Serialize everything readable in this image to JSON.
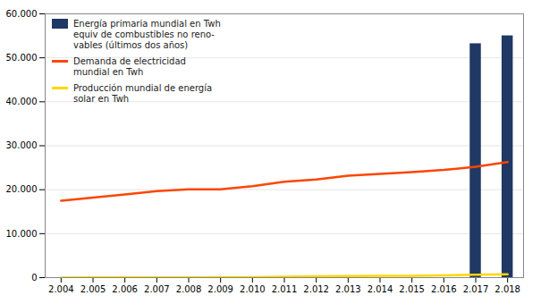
{
  "chart_data": {
    "type": "bar",
    "x": [
      2004,
      2005,
      2006,
      2007,
      2008,
      2009,
      2010,
      2011,
      2012,
      2013,
      2014,
      2015,
      2016,
      2017,
      2018
    ],
    "series": [
      {
        "name": "Energía primaria mundial en Twh\nequiv de combustibles no reno-\nvables (últimos dos años)",
        "type": "bar",
        "color": "#1f3864",
        "values": [
          null,
          null,
          null,
          null,
          null,
          null,
          null,
          null,
          null,
          null,
          null,
          null,
          null,
          53200,
          55000
        ]
      },
      {
        "name": "Demanda de electricidad\nmundial en Twh",
        "type": "line",
        "color": "#FF4500",
        "values": [
          17500,
          18200,
          18900,
          19700,
          20100,
          20100,
          20800,
          21800,
          22300,
          23200,
          23600,
          24000,
          24500,
          25200,
          26300
        ]
      },
      {
        "name": "Producción mundial de energía\nsolar en Twh",
        "type": "line",
        "color": "#FFD700",
        "values": [
          20,
          30,
          35,
          50,
          70,
          80,
          120,
          200,
          280,
          340,
          390,
          430,
          500,
          650,
          750
        ]
      }
    ],
    "xlim": [
      2003.5,
      2018.5
    ],
    "xticks": [
      {
        "value": 2004,
        "label": "2.004"
      },
      {
        "value": 2005,
        "label": "2.005"
      },
      {
        "value": 2006,
        "label": "2.006"
      },
      {
        "value": 2007,
        "label": "2.007"
      },
      {
        "value": 2008,
        "label": "2.008"
      },
      {
        "value": 2009,
        "label": "2.009"
      },
      {
        "value": 2010,
        "label": "2.010"
      },
      {
        "value": 2011,
        "label": "2.011"
      },
      {
        "value": 2012,
        "label": "2.012"
      },
      {
        "value": 2013,
        "label": "2.013"
      },
      {
        "value": 2014,
        "label": "2.014"
      },
      {
        "value": 2015,
        "label": "2.015"
      },
      {
        "value": 2016,
        "label": "2.016"
      },
      {
        "value": 2017,
        "label": "2.017"
      },
      {
        "value": 2018,
        "label": "2.018"
      }
    ],
    "ylim": [
      0,
      60000
    ],
    "yticks": [
      0,
      {
        "value": 10000,
        "label": "10.000"
      },
      {
        "value": 20000,
        "label": "20.000"
      },
      {
        "value": 30000,
        "label": "30.000"
      },
      {
        "value": 40000,
        "label": "40.000"
      },
      {
        "value": 50000,
        "label": "50.000"
      },
      {
        "value": 60000,
        "label": "60.000"
      }
    ],
    "grid": true,
    "legend": "upper left"
  }
}
